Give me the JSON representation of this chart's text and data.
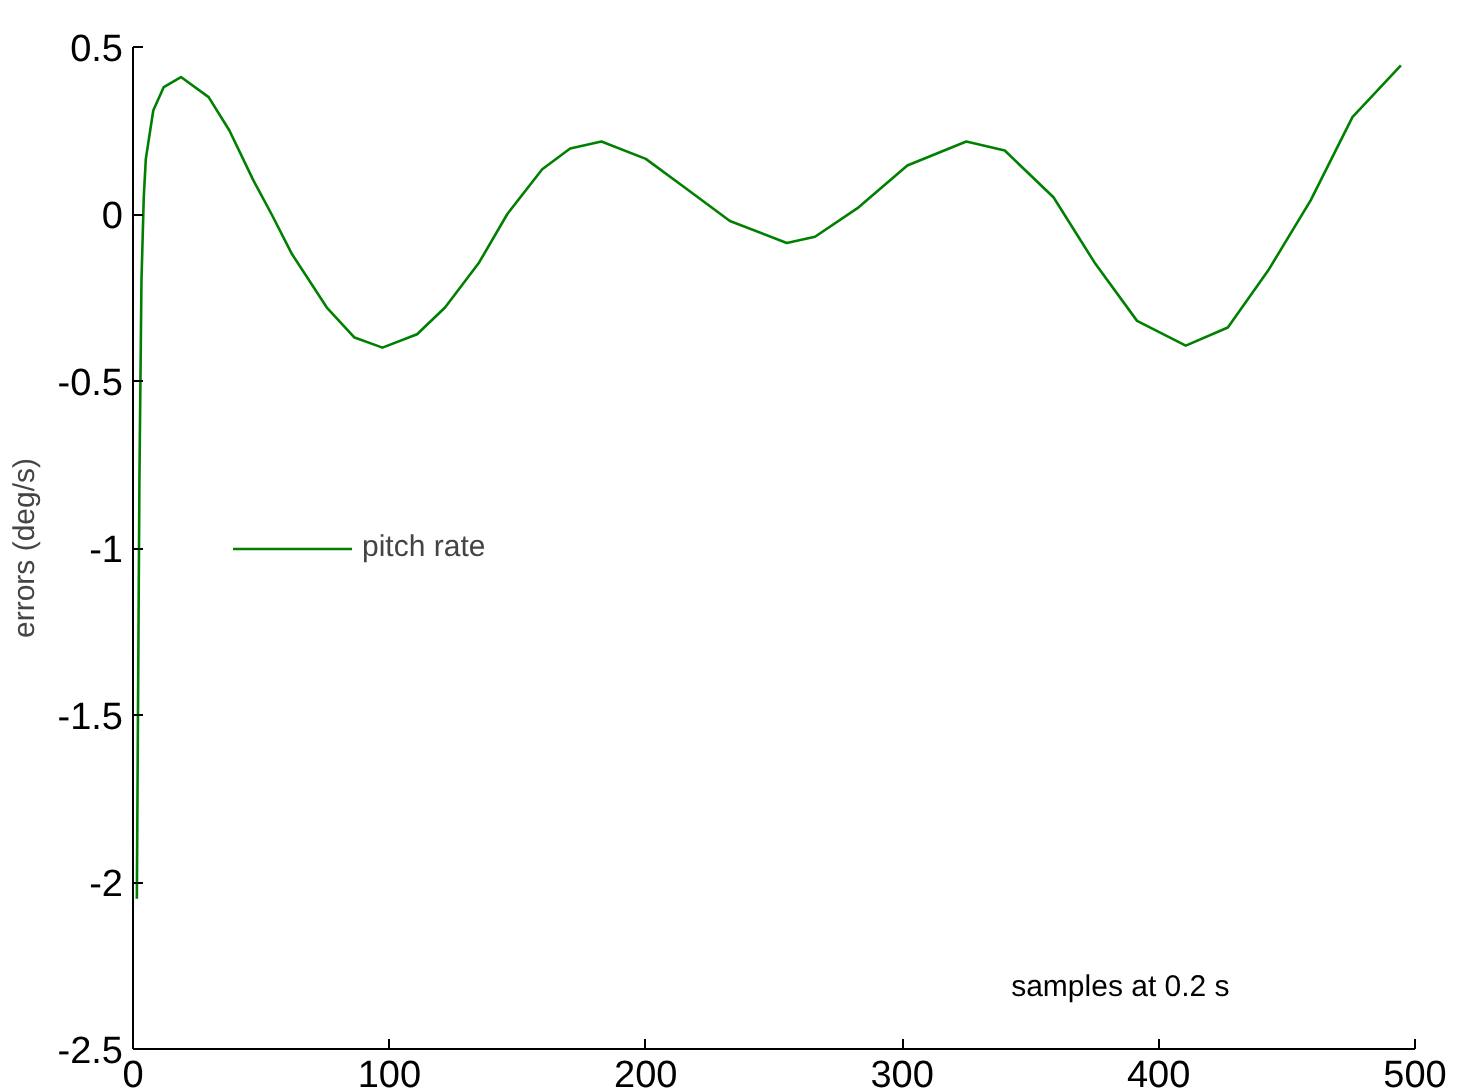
{
  "chart_data": {
    "type": "line",
    "ylabel": "errors (deg/s)",
    "annotations": [
      "samples at 0.2 s"
    ],
    "x": [
      1.5,
      2.5,
      3.3,
      4.2,
      5,
      7.9,
      12,
      18.7,
      29.5,
      37.6,
      47,
      54,
      62,
      75.6,
      86.4,
      97.3,
      110.8,
      121.7,
      135,
      146,
      159.6,
      170.5,
      182.7,
      200,
      216.5,
      232.8,
      255,
      266,
      283,
      302,
      325,
      340,
      359,
      375,
      391.6,
      410.6,
      427,
      443,
      459.3,
      475.6,
      494.5
    ],
    "series": [
      {
        "name": "pitch rate",
        "color": "#008000",
        "values": [
          -2.05,
          -0.8,
          -0.2,
          0.05,
          0.165,
          0.31,
          0.38,
          0.41,
          0.35,
          0.25,
          0.1,
          0,
          -0.12,
          -0.28,
          -0.37,
          -0.4,
          -0.36,
          -0.28,
          -0.145,
          0,
          0.134,
          0.196,
          0.217,
          0.165,
          0.072,
          -0.021,
          -0.087,
          -0.068,
          0.02,
          0.145,
          0.217,
          0.19,
          0.05,
          -0.145,
          -0.32,
          -0.394,
          -0.34,
          -0.166,
          0.041,
          0.29,
          0.445
        ]
      }
    ],
    "xlim": [
      0,
      500
    ],
    "ylim": [
      -2.5,
      0.5
    ],
    "xticks": [
      0,
      100,
      200,
      300,
      400,
      500
    ],
    "yticks": [
      -2.5,
      -2,
      -1.5,
      -1,
      -0.5,
      0,
      0.5
    ],
    "grid": false,
    "legend": "left"
  }
}
